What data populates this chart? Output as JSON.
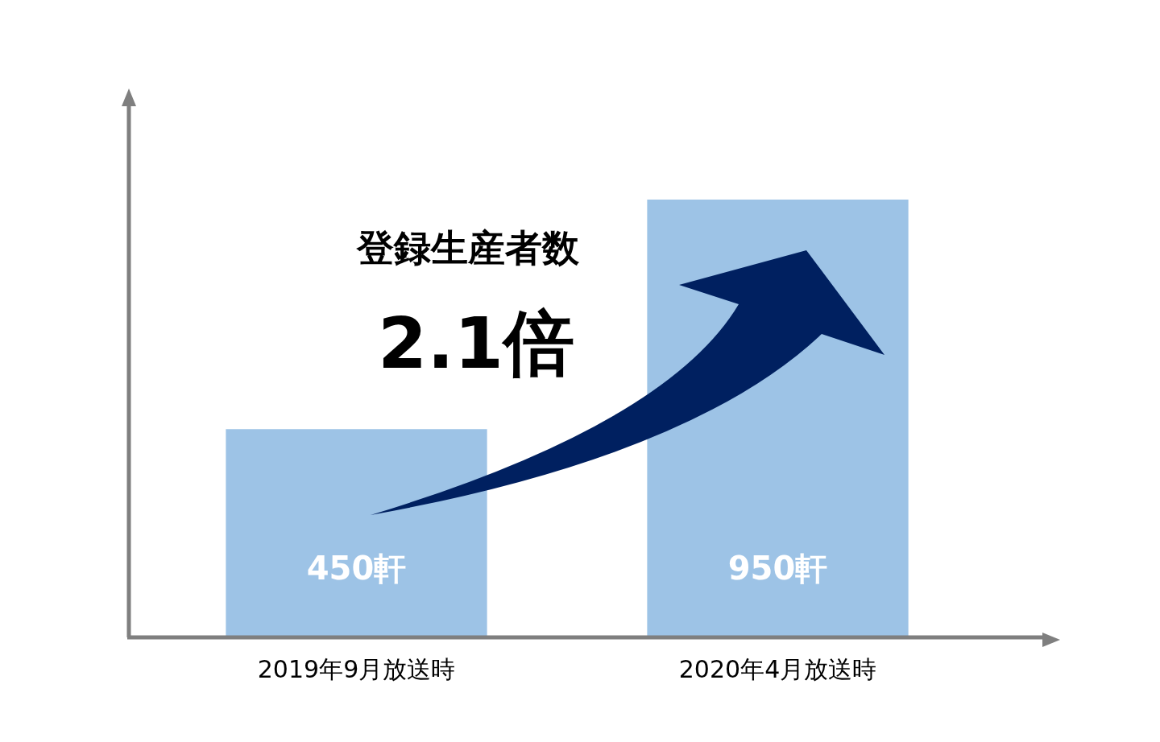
{
  "chart_data": {
    "type": "bar",
    "categories": [
      "2019年9月放送時",
      "2020年4月放送時"
    ],
    "values": [
      450,
      950
    ],
    "value_labels": [
      "450軒",
      "950軒"
    ],
    "color": "#9dc3e6",
    "annotations": [
      "登録生産者数",
      "2.1倍"
    ]
  }
}
